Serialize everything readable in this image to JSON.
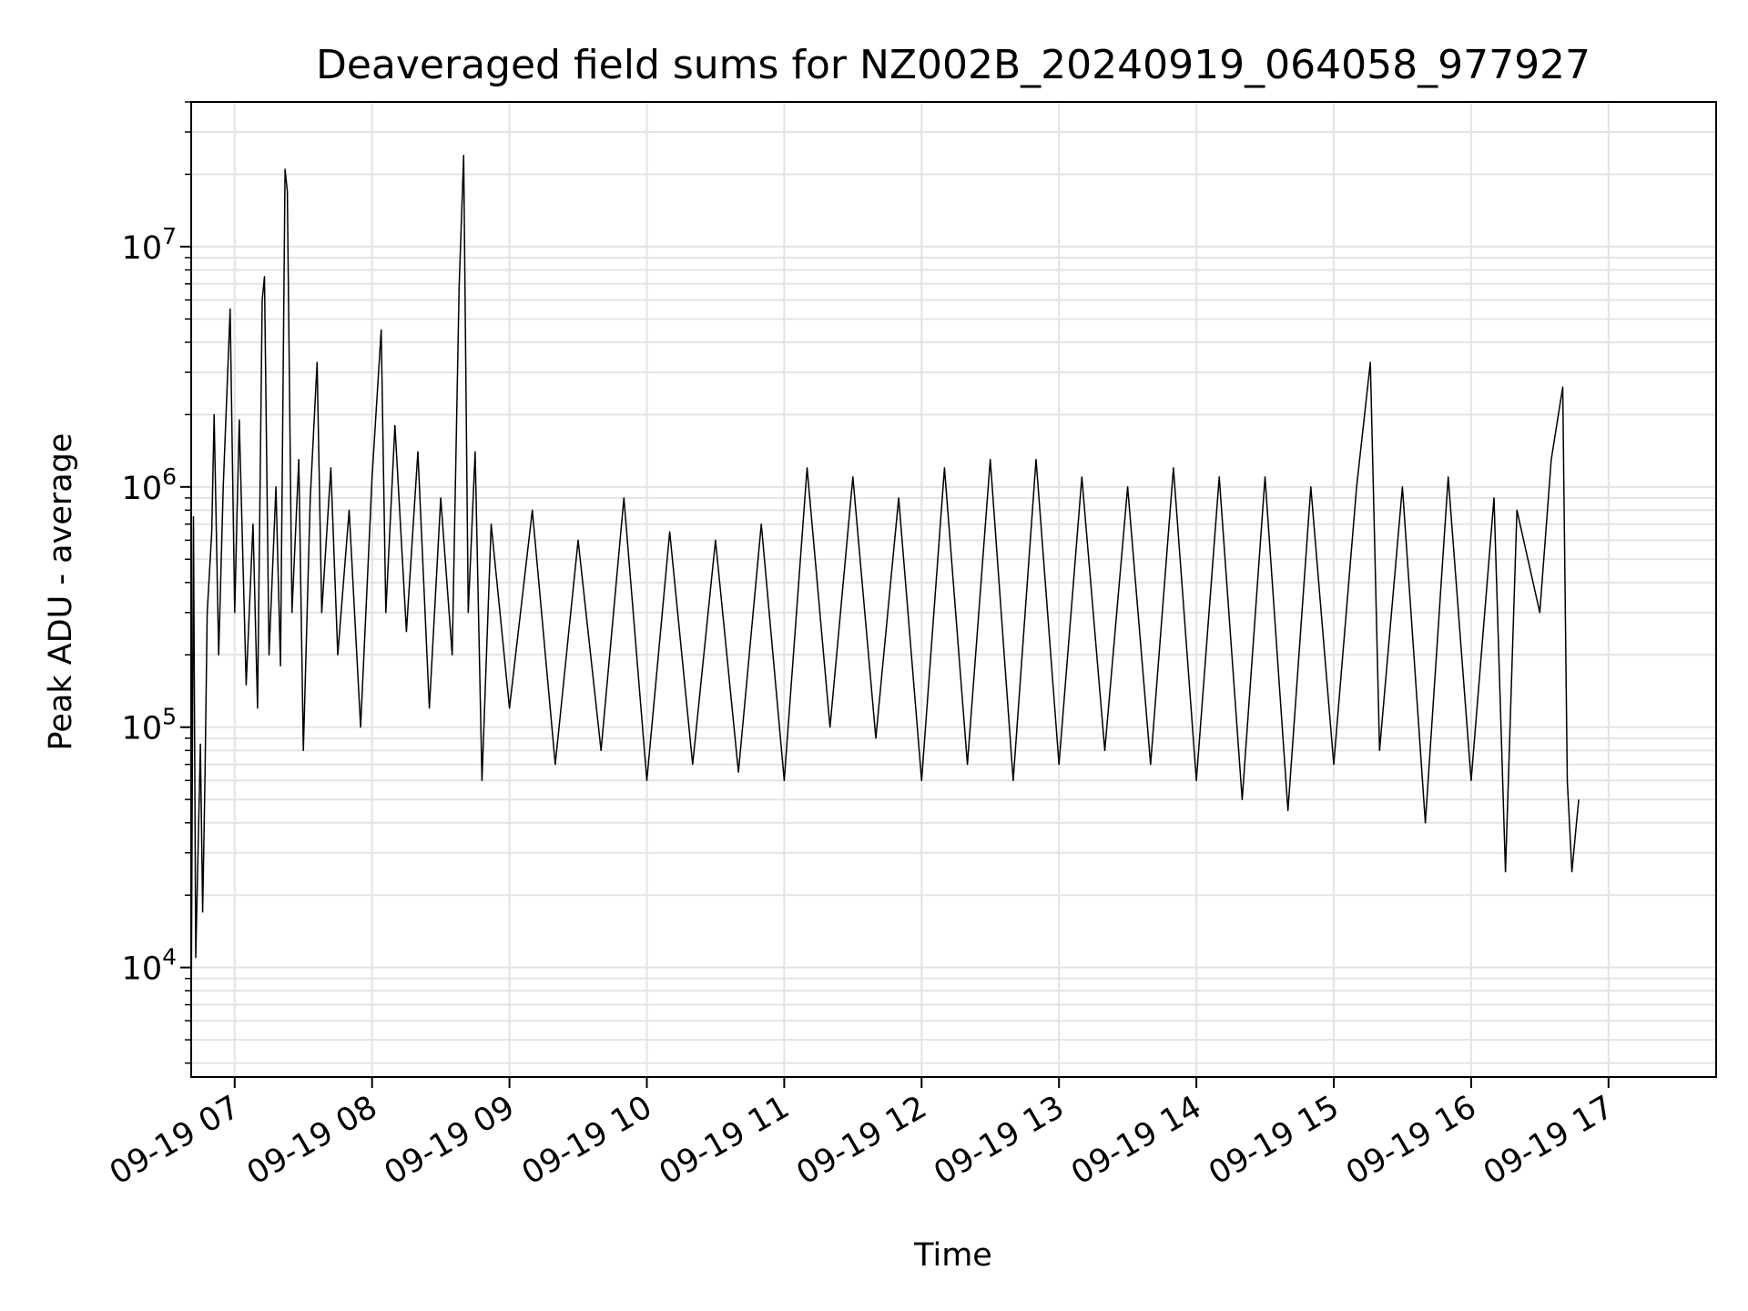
{
  "chart_data": {
    "type": "line",
    "title": "Deaveraged field sums for NZ002B_20240919_064058_977927",
    "xlabel": "Time",
    "ylabel": "Peak ADU - average",
    "y_scale": "log",
    "ylim": [
      3500,
      40000000
    ],
    "xlim": [
      "2024-09-19 06:41",
      "2024-09-19 17:47"
    ],
    "grid": true,
    "line_color": "#000000",
    "grid_color": "#e3e3e3",
    "x_ticks": [
      {
        "t": "2024-09-19 07:00",
        "label": "09-19 07"
      },
      {
        "t": "2024-09-19 08:00",
        "label": "09-19 08"
      },
      {
        "t": "2024-09-19 09:00",
        "label": "09-19 09"
      },
      {
        "t": "2024-09-19 10:00",
        "label": "09-19 10"
      },
      {
        "t": "2024-09-19 11:00",
        "label": "09-19 11"
      },
      {
        "t": "2024-09-19 12:00",
        "label": "09-19 12"
      },
      {
        "t": "2024-09-19 13:00",
        "label": "09-19 13"
      },
      {
        "t": "2024-09-19 14:00",
        "label": "09-19 14"
      },
      {
        "t": "2024-09-19 15:00",
        "label": "09-19 15"
      },
      {
        "t": "2024-09-19 16:00",
        "label": "09-19 16"
      },
      {
        "t": "2024-09-19 17:00",
        "label": "09-19 17"
      }
    ],
    "y_ticks": [
      {
        "value": 10000,
        "base": "10",
        "exp": "4"
      },
      {
        "value": 100000,
        "base": "10",
        "exp": "5"
      },
      {
        "value": 1000000,
        "base": "10",
        "exp": "6"
      },
      {
        "value": 10000000,
        "base": "10",
        "exp": "7"
      }
    ],
    "series": [
      {
        "values_note_omitted": "",
        "points": [
          [
            "2024-09-19 06:41",
            5500
          ],
          [
            "2024-09-19 06:42",
            750000
          ],
          [
            "2024-09-19 06:43",
            11000
          ],
          [
            "2024-09-19 06:44",
            30000
          ],
          [
            "2024-09-19 06:45",
            85000
          ],
          [
            "2024-09-19 06:46",
            17000
          ],
          [
            "2024-09-19 06:47",
            60000
          ],
          [
            "2024-09-19 06:48",
            300000
          ],
          [
            "2024-09-19 06:50",
            650000
          ],
          [
            "2024-09-19 06:51",
            2000000
          ],
          [
            "2024-09-19 06:53",
            200000
          ],
          [
            "2024-09-19 06:55",
            1000000
          ],
          [
            "2024-09-19 06:58",
            5500000
          ],
          [
            "2024-09-19 07:00",
            300000
          ],
          [
            "2024-09-19 07:02",
            1900000
          ],
          [
            "2024-09-19 07:05",
            150000
          ],
          [
            "2024-09-19 07:08",
            700000
          ],
          [
            "2024-09-19 07:10",
            120000
          ],
          [
            "2024-09-19 07:12",
            6000000
          ],
          [
            "2024-09-19 07:13",
            7500000
          ],
          [
            "2024-09-19 07:15",
            200000
          ],
          [
            "2024-09-19 07:18",
            1000000
          ],
          [
            "2024-09-19 07:20",
            180000
          ],
          [
            "2024-09-19 07:22",
            21000000
          ],
          [
            "2024-09-19 07:23",
            17000000
          ],
          [
            "2024-09-19 07:25",
            300000
          ],
          [
            "2024-09-19 07:28",
            1300000
          ],
          [
            "2024-09-19 07:30",
            80000
          ],
          [
            "2024-09-19 07:33",
            900000
          ],
          [
            "2024-09-19 07:36",
            3300000
          ],
          [
            "2024-09-19 07:38",
            300000
          ],
          [
            "2024-09-19 07:42",
            1200000
          ],
          [
            "2024-09-19 07:45",
            200000
          ],
          [
            "2024-09-19 07:50",
            800000
          ],
          [
            "2024-09-19 07:55",
            100000
          ],
          [
            "2024-09-19 08:00",
            1100000
          ],
          [
            "2024-09-19 08:04",
            4500000
          ],
          [
            "2024-09-19 08:06",
            300000
          ],
          [
            "2024-09-19 08:10",
            1800000
          ],
          [
            "2024-09-19 08:15",
            250000
          ],
          [
            "2024-09-19 08:20",
            1400000
          ],
          [
            "2024-09-19 08:25",
            120000
          ],
          [
            "2024-09-19 08:30",
            900000
          ],
          [
            "2024-09-19 08:35",
            200000
          ],
          [
            "2024-09-19 08:38",
            6800000
          ],
          [
            "2024-09-19 08:40",
            24000000
          ],
          [
            "2024-09-19 08:42",
            300000
          ],
          [
            "2024-09-19 08:45",
            1400000
          ],
          [
            "2024-09-19 08:48",
            60000
          ],
          [
            "2024-09-19 08:52",
            700000
          ],
          [
            "2024-09-19 09:00",
            120000
          ],
          [
            "2024-09-19 09:10",
            800000
          ],
          [
            "2024-09-19 09:20",
            70000
          ],
          [
            "2024-09-19 09:30",
            600000
          ],
          [
            "2024-09-19 09:40",
            80000
          ],
          [
            "2024-09-19 09:50",
            900000
          ],
          [
            "2024-09-19 10:00",
            60000
          ],
          [
            "2024-09-19 10:10",
            650000
          ],
          [
            "2024-09-19 10:20",
            70000
          ],
          [
            "2024-09-19 10:30",
            600000
          ],
          [
            "2024-09-19 10:40",
            65000
          ],
          [
            "2024-09-19 10:50",
            700000
          ],
          [
            "2024-09-19 11:00",
            60000
          ],
          [
            "2024-09-19 11:10",
            1200000
          ],
          [
            "2024-09-19 11:20",
            100000
          ],
          [
            "2024-09-19 11:30",
            1100000
          ],
          [
            "2024-09-19 11:40",
            90000
          ],
          [
            "2024-09-19 11:50",
            900000
          ],
          [
            "2024-09-19 12:00",
            60000
          ],
          [
            "2024-09-19 12:10",
            1200000
          ],
          [
            "2024-09-19 12:20",
            70000
          ],
          [
            "2024-09-19 12:30",
            1300000
          ],
          [
            "2024-09-19 12:40",
            60000
          ],
          [
            "2024-09-19 12:50",
            1300000
          ],
          [
            "2024-09-19 13:00",
            70000
          ],
          [
            "2024-09-19 13:10",
            1100000
          ],
          [
            "2024-09-19 13:20",
            80000
          ],
          [
            "2024-09-19 13:30",
            1000000
          ],
          [
            "2024-09-19 13:40",
            70000
          ],
          [
            "2024-09-19 13:50",
            1200000
          ],
          [
            "2024-09-19 14:00",
            60000
          ],
          [
            "2024-09-19 14:10",
            1100000
          ],
          [
            "2024-09-19 14:20",
            50000
          ],
          [
            "2024-09-19 14:30",
            1100000
          ],
          [
            "2024-09-19 14:40",
            45000
          ],
          [
            "2024-09-19 14:50",
            1000000
          ],
          [
            "2024-09-19 15:00",
            70000
          ],
          [
            "2024-09-19 15:10",
            1000000
          ],
          [
            "2024-09-19 15:16",
            3300000
          ],
          [
            "2024-09-19 15:20",
            80000
          ],
          [
            "2024-09-19 15:30",
            1000000
          ],
          [
            "2024-09-19 15:40",
            40000
          ],
          [
            "2024-09-19 15:50",
            1100000
          ],
          [
            "2024-09-19 16:00",
            60000
          ],
          [
            "2024-09-19 16:10",
            900000
          ],
          [
            "2024-09-19 16:15",
            25000
          ],
          [
            "2024-09-19 16:20",
            800000
          ],
          [
            "2024-09-19 16:30",
            300000
          ],
          [
            "2024-09-19 16:35",
            1300000
          ],
          [
            "2024-09-19 16:40",
            2600000
          ],
          [
            "2024-09-19 16:42",
            60000
          ],
          [
            "2024-09-19 16:44",
            25000
          ],
          [
            "2024-09-19 16:46",
            40000
          ],
          [
            "2024-09-19 16:47",
            50000
          ]
        ]
      }
    ]
  }
}
